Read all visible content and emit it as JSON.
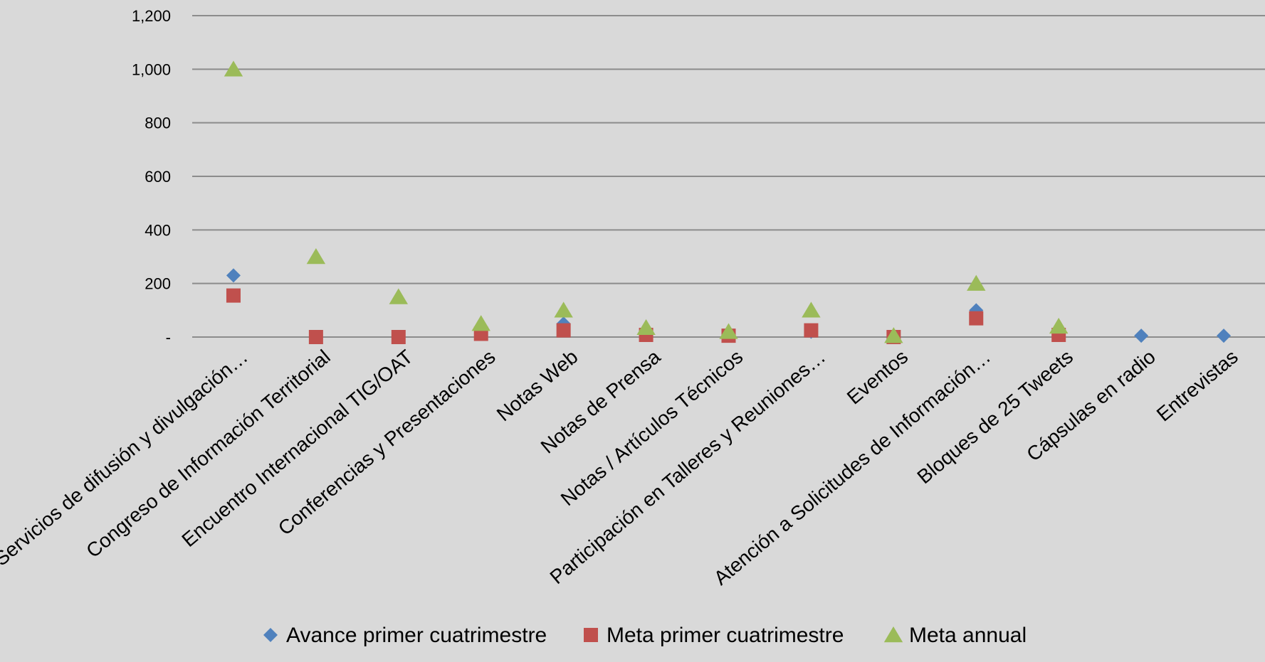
{
  "chart_data": {
    "type": "scatter",
    "categories": [
      "Servicios de difusión y divulgación…",
      "Congreso de Información Territorial",
      "Encuentro Internacional TIG/OAT",
      "Conferencias y Presentaciones",
      "Notas Web",
      "Notas de Prensa",
      "Notas / Artículos Técnicos",
      "Participación en Talleres y Reuniones…",
      "Eventos",
      "Atención a Solicitudes de Información…",
      "Bloques de 25 Tweets",
      "Cápsulas en radio",
      "Entrevistas"
    ],
    "series": [
      {
        "name": "Avance  primer cuatrimestre",
        "marker": "diamond",
        "color": "#4f81bd",
        "values": [
          230,
          null,
          null,
          15,
          50,
          12,
          10,
          20,
          null,
          100,
          10,
          5,
          5
        ]
      },
      {
        "name": "Meta primer cuatrimestre",
        "marker": "square",
        "color": "#c0504d",
        "values": [
          155,
          0,
          0,
          12,
          25,
          8,
          5,
          25,
          0,
          70,
          8,
          null,
          null
        ]
      },
      {
        "name": "Meta annual",
        "marker": "triangle",
        "color": "#9bbb59",
        "values": [
          1000,
          300,
          150,
          50,
          100,
          35,
          20,
          100,
          5,
          200,
          40,
          null,
          null
        ]
      }
    ],
    "yticks": [
      "-",
      "200",
      "400",
      "600",
      "800",
      "1,000",
      "1,200"
    ],
    "ytick_values": [
      0,
      200,
      400,
      600,
      800,
      1000,
      1200
    ],
    "ylim": [
      0,
      1200
    ],
    "grid": true,
    "legend_position": "bottom"
  }
}
